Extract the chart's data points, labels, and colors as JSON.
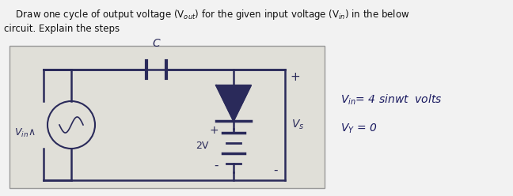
{
  "bg_color": "#f2f2f2",
  "panel_color": "#e0dfd8",
  "panel_border": "#999999",
  "cc": "#2a2a5a",
  "title1": "    Draw one cycle of output voltage (V$_{out}$) for the given input voltage (V$_{in}$) in the below",
  "title2": "circuit. Explain the steps",
  "eq1": "V$_{in}$= 4 sinwt  volts",
  "eq2": "V$_Y$ = 0",
  "vin_lbl": "V$_{in}$∧",
  "two_v": "2V",
  "vs_lbl": "V$_s$",
  "cap_lbl": "C",
  "plus1": "+",
  "plus2": "+",
  "minus1": "-",
  "minus2": "-"
}
